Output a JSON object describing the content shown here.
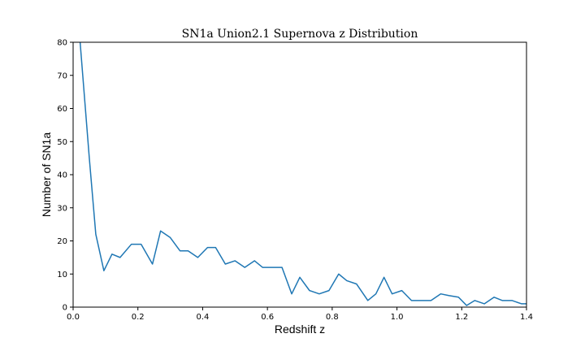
{
  "chart_data": {
    "type": "line",
    "title": "SN1a Union2.1 Supernova z Distribution",
    "xlabel": "Redshift z",
    "ylabel": "Number of SN1a",
    "xlim": [
      0,
      1.4
    ],
    "ylim": [
      0,
      80
    ],
    "x_ticks": [
      "0.0",
      "0.2",
      "0.4",
      "0.6",
      "0.8",
      "1.0",
      "1.2",
      "1.4"
    ],
    "y_ticks": [
      "0",
      "10",
      "20",
      "30",
      "40",
      "50",
      "60",
      "70",
      "80"
    ],
    "grid": false,
    "legend": "none",
    "line_color": "#1f77b4",
    "series": [
      {
        "x": [
          0.02,
          0.05,
          0.07,
          0.095,
          0.12,
          0.145,
          0.18,
          0.21,
          0.245,
          0.27,
          0.3,
          0.33,
          0.355,
          0.385,
          0.415,
          0.44,
          0.47,
          0.5,
          0.53,
          0.56,
          0.585,
          0.615,
          0.645,
          0.675,
          0.7,
          0.73,
          0.76,
          0.79,
          0.82,
          0.845,
          0.875,
          0.91,
          0.935,
          0.96,
          0.985,
          1.015,
          1.045,
          1.075,
          1.105,
          1.135,
          1.16,
          1.19,
          1.215,
          1.24,
          1.27,
          1.3,
          1.325,
          1.355,
          1.385,
          1.41
        ],
        "values": [
          82,
          45,
          22,
          11,
          16,
          15,
          19,
          19,
          13,
          23,
          21,
          17,
          17,
          15,
          18,
          18,
          13,
          14,
          12,
          14,
          12,
          12,
          12,
          4,
          9,
          5,
          4,
          5,
          10,
          8,
          7,
          2,
          4,
          9,
          4,
          5,
          2,
          2,
          2,
          4,
          3.5,
          3,
          0.5,
          2,
          1,
          3,
          2,
          2,
          1,
          1
        ]
      }
    ]
  }
}
